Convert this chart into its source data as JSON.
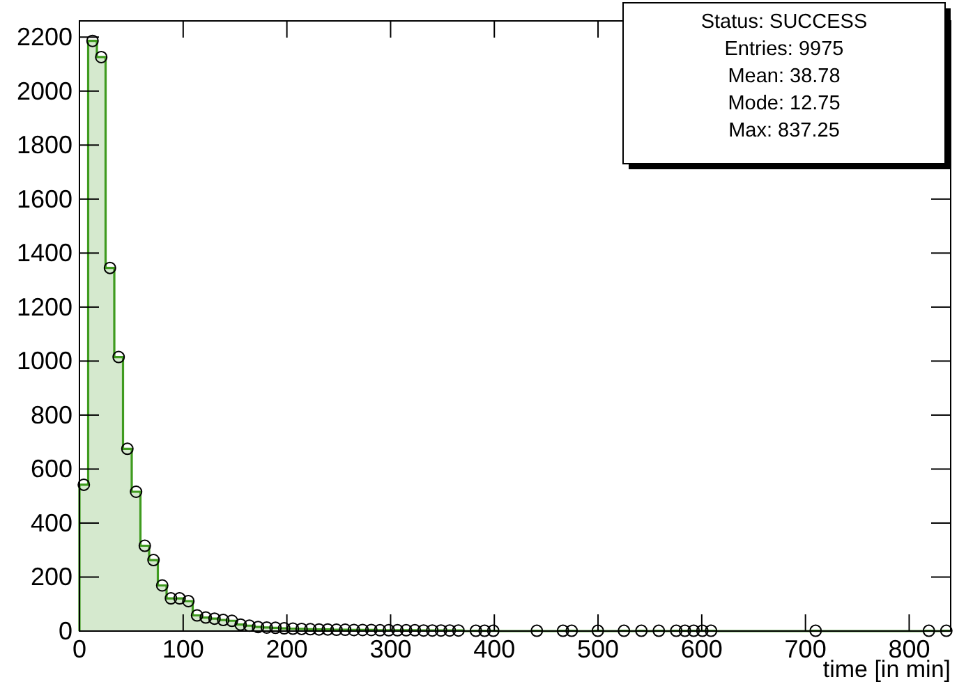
{
  "chart_data": {
    "type": "histogram",
    "xlabel": "time [in min]",
    "bins": [
      0,
      8.4,
      16.8,
      25.2,
      33.6,
      42,
      50.4,
      58.8,
      67.2,
      75.6,
      84,
      92.4,
      100.8,
      109.2,
      117.6,
      126,
      134.4,
      142.8,
      151.2,
      159.6,
      168,
      176.4,
      184.8,
      193.2,
      201.6,
      210,
      218.4,
      226.8,
      235.2,
      243.6,
      252,
      260.4,
      268.8,
      277.2,
      285.6,
      294,
      302.4,
      310.8,
      319.2,
      327.6,
      336,
      344.4,
      352.8,
      361.2,
      369.6,
      378,
      386.4,
      394.8,
      403.2,
      411.6,
      420,
      428.4,
      436.8,
      445.2,
      453.6,
      462,
      470.4,
      478.8,
      487.2,
      495.6,
      504,
      512.4,
      520.8,
      529.2,
      537.6,
      546,
      554.4,
      562.8,
      571.2,
      579.6,
      588,
      596.4,
      604.8,
      613.2,
      621.6,
      630,
      638.4,
      646.8,
      655.2,
      663.6,
      672,
      680.4,
      688.8,
      697.2,
      705.6,
      714,
      722.4,
      730.8,
      739.2,
      747.6,
      756,
      764.4,
      772.8,
      781.2,
      789.6,
      798,
      806.4,
      814.8,
      823.2,
      831.6,
      840
    ],
    "series": [
      {
        "color": "#3f9b1f",
        "values": [
          542,
          2186,
          2126,
          1345,
          1015,
          675,
          516,
          316,
          263,
          169,
          121,
          121,
          111,
          58,
          50,
          46,
          41,
          38,
          24,
          20,
          15,
          13,
          12,
          10,
          9,
          8,
          7,
          6,
          6,
          5,
          5,
          4,
          4,
          4,
          3,
          3,
          3,
          3,
          3,
          2,
          2,
          2,
          2,
          2,
          0,
          1,
          1,
          1,
          0,
          0,
          0,
          0,
          1,
          0,
          0,
          1,
          1,
          0,
          0,
          1,
          0,
          0,
          1,
          0,
          1,
          0,
          1,
          0,
          1,
          1,
          1,
          1,
          1,
          0,
          0,
          0,
          0,
          0,
          0,
          0,
          0,
          0,
          0,
          0,
          1,
          0,
          0,
          0,
          0,
          0,
          0,
          0,
          0,
          0,
          0,
          0,
          0,
          1,
          0,
          1
        ]
      },
      {
        "type": "scatter",
        "color": "#000000",
        "marker": "circle",
        "x": [
          4.2,
          12.6,
          21,
          29.4,
          37.8,
          46.2,
          54.6,
          63,
          71.4,
          79.8,
          88.2,
          96.6,
          105,
          113.4,
          121.8,
          130.2,
          138.6,
          147,
          155.4,
          163.8,
          172.2,
          180.6,
          189,
          197.4,
          205.8,
          214.2,
          222.6,
          231,
          239.4,
          247.8,
          256.2,
          264.6,
          273,
          281.4,
          289.8,
          298.2,
          306.6,
          315,
          323.4,
          331.8,
          340.2,
          348.6,
          357,
          365.4,
          382.2,
          390.6,
          399,
          441,
          466.2,
          474.6,
          499.8,
          525,
          541.8,
          558.6,
          575.4,
          583.8,
          592.2,
          600.6,
          609,
          709.8,
          819,
          835.8
        ],
        "values": [
          542,
          2186,
          2126,
          1345,
          1015,
          675,
          516,
          316,
          263,
          169,
          121,
          121,
          111,
          58,
          50,
          46,
          41,
          38,
          24,
          20,
          15,
          13,
          12,
          10,
          9,
          8,
          7,
          6,
          6,
          5,
          5,
          4,
          4,
          4,
          3,
          3,
          3,
          3,
          3,
          2,
          2,
          2,
          2,
          2,
          1,
          1,
          1,
          1,
          1,
          1,
          1,
          1,
          1,
          1,
          1,
          1,
          1,
          1,
          1,
          1,
          1,
          1
        ]
      }
    ],
    "xlim": [
      0,
      840
    ],
    "xticks": [
      0,
      100,
      200,
      300,
      400,
      500,
      600,
      700,
      800
    ],
    "ylim": [
      0,
      2260
    ],
    "yticks": [
      0,
      200,
      400,
      600,
      800,
      1000,
      1200,
      1400,
      1600,
      1800,
      2000,
      2200
    ],
    "annotations": [
      "Status: SUCCESS",
      "Entries: 9975",
      "Mean: 38.78",
      "Mode: 12.75",
      "Max: 837.25"
    ]
  }
}
